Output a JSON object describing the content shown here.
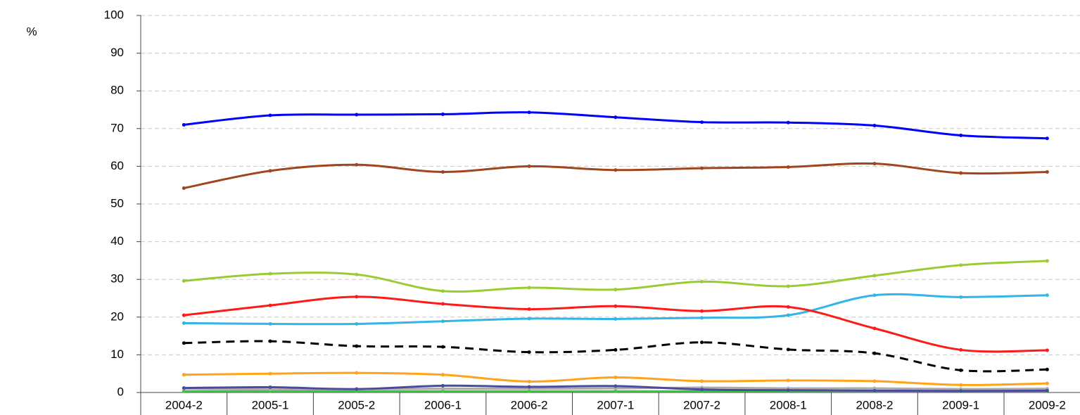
{
  "chart_data": {
    "type": "line",
    "y_label": "%",
    "categories": [
      "2004-2",
      "2005-1",
      "2005-2",
      "2006-1",
      "2006-2",
      "2007-1",
      "2007-2",
      "2008-1",
      "2008-2",
      "2009-1",
      "2009-2"
    ],
    "series": [
      {
        "color": "#0000ff",
        "values": [
          71,
          73.5,
          73.7,
          73.8,
          74.3,
          73,
          71.7,
          71.6,
          70.8,
          68.2,
          67.4
        ]
      },
      {
        "color": "#a0461e",
        "values": [
          54.2,
          58.8,
          60.4,
          58.5,
          60,
          59,
          59.5,
          59.8,
          60.7,
          58.2,
          58.5
        ]
      },
      {
        "color": "#99cc33",
        "values": [
          29.6,
          31.5,
          31.3,
          26.9,
          27.8,
          27.3,
          29.4,
          28.2,
          31,
          33.8,
          34.9
        ]
      },
      {
        "color": "#ff1a1a",
        "values": [
          20.5,
          23.1,
          25.4,
          23.5,
          22.1,
          22.9,
          21.6,
          22.7,
          17,
          11.3,
          11.2
        ]
      },
      {
        "color": "#33b5e5",
        "values": [
          18.4,
          18.2,
          18.2,
          18.9,
          19.6,
          19.5,
          19.8,
          20.5,
          25.8,
          25.3,
          25.8
        ]
      },
      {
        "color": "#000000",
        "dashed": true,
        "values": [
          13.1,
          13.6,
          12.3,
          12.1,
          10.7,
          11.3,
          13.3,
          11.4,
          10.4,
          5.9,
          6.1
        ]
      },
      {
        "color": "#ffa31a",
        "values": [
          4.7,
          5,
          5.2,
          4.7,
          2.9,
          4,
          3,
          3.2,
          3,
          2,
          2.4
        ]
      },
      {
        "color": "#4b4b9e",
        "values": [
          1.2,
          1.4,
          0.9,
          1.8,
          1.5,
          1.7,
          0.8,
          0.6,
          0.5,
          0.4,
          0.5
        ]
      },
      {
        "color": "#aaaaaa",
        "values": [
          1,
          0.8,
          0.9,
          1,
          1,
          1.1,
          1.3,
          1.1,
          1.1,
          0.9,
          1
        ]
      },
      {
        "color": "#33cc33",
        "values": [
          0.3,
          0.3,
          0.3,
          0.3,
          0.3,
          0.3,
          0.3,
          0.3,
          0.3,
          0.3,
          0.3
        ]
      }
    ],
    "ylim": [
      0,
      100
    ],
    "yticks": [
      0,
      10,
      20,
      30,
      40,
      50,
      60,
      70,
      80,
      90,
      100
    ],
    "grid": true
  }
}
